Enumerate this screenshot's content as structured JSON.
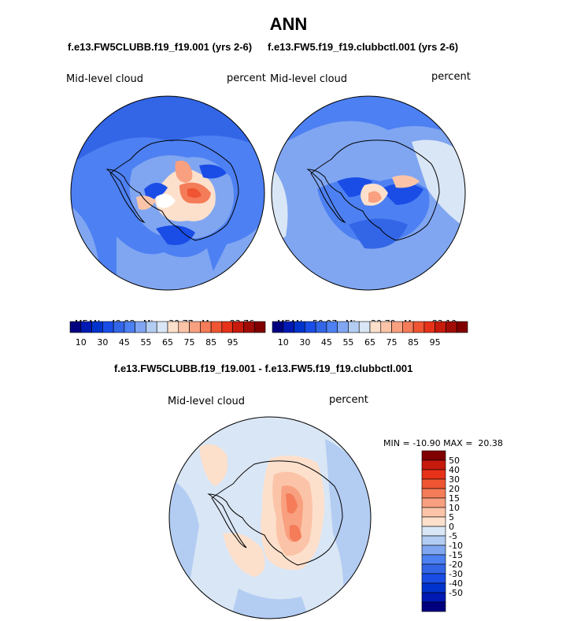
{
  "title": "ANN",
  "top_subtitle_left": "f.e13.FW5CLUBB.f19_f19.001 (yrs 2-6)",
  "top_subtitle_right": "f.e13.FW5.f19_f19.clubbctl.001 (yrs 2-6)",
  "diff_subtitle": "f.e13.FW5CLUBB.f19_f19.001 - f.e13.FW5.f19_f19.clubbctl.001",
  "panels": [
    {
      "variable": "Mid-level cloud",
      "units": "percent",
      "mean_label": "MEAN=",
      "mean": "49.08",
      "min_label": "Min=",
      "min": "30.77",
      "max_label": "Max=",
      "max": "83.76"
    },
    {
      "variable": "Mid-level cloud",
      "units": "percent",
      "mean_label": "MEAN=",
      "mean": "50.97",
      "min_label": "Min=",
      "min": "29.79",
      "max_label": "Max=",
      "max": "83.10"
    },
    {
      "variable": "Mid-level cloud",
      "units": "percent",
      "min_label": "MIN =",
      "min": "-10.90",
      "max_label": "MAX =",
      "max": "20.38"
    }
  ],
  "colorbar_levels": {
    "colors": [
      "#00007f",
      "#0019b2",
      "#0033cc",
      "#1a4de6",
      "#3366e6",
      "#4d80f2",
      "#80a6f2",
      "#b3ccf2",
      "#d9e6f5",
      "#fde0cc",
      "#fbc4a8",
      "#f8a07f",
      "#f47c59",
      "#ef5533",
      "#e63219",
      "#c61a0d",
      "#a00d06",
      "#800000"
    ],
    "labels": [
      "10",
      "30",
      "45",
      "55",
      "65",
      "75",
      "85",
      "95"
    ]
  },
  "diff_colorbar": {
    "colors": [
      "#00007f",
      "#0019b2",
      "#0033cc",
      "#1a4de6",
      "#3366e6",
      "#4d80f2",
      "#80a6f2",
      "#b3ccf2",
      "#d9e6f5",
      "#fde0cc",
      "#fbc4a8",
      "#f8a07f",
      "#f47c59",
      "#ef5533",
      "#e63219",
      "#c61a0d",
      "#800000"
    ],
    "labels": [
      "50",
      "40",
      "30",
      "20",
      "15",
      "10",
      "5",
      "0",
      "-5",
      "-10",
      "-15",
      "-20",
      "-30",
      "-40",
      "-50"
    ]
  }
}
